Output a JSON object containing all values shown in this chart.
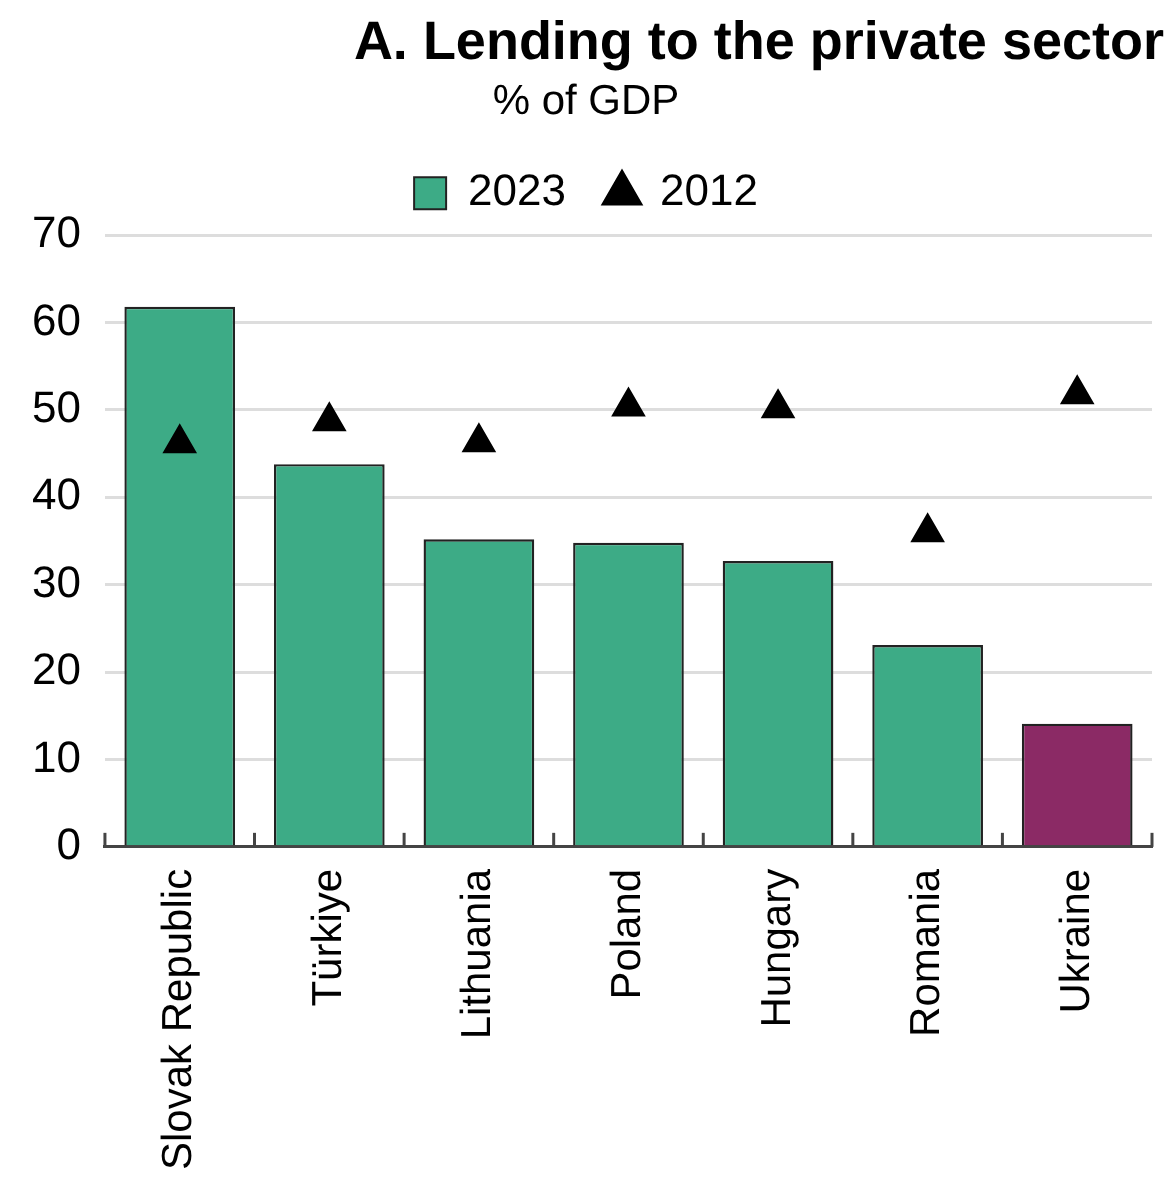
{
  "chart_data": {
    "type": "bar",
    "title": "A. Lending to the private sector",
    "subtitle": "% of GDP",
    "categories": [
      "Slovak Republic",
      "Türkiye",
      "Lithuania",
      "Poland",
      "Hungary",
      "Romania",
      "Ukraine"
    ],
    "series": [
      {
        "name": "2023",
        "color": "#3dab86",
        "colors": [
          "#3dab86",
          "#3dab86",
          "#3dab86",
          "#3dab86",
          "#3dab86",
          "#3dab86",
          "#8b2a65"
        ],
        "values": [
          61.8,
          43.8,
          35.2,
          34.8,
          32.7,
          23.1,
          14.1
        ]
      },
      {
        "name": "2012",
        "type": "scatter",
        "color": "#000000",
        "marker": "triangle",
        "x": [
          "Slovak Republic",
          "Türkiye",
          "Lithuania",
          "Poland",
          "Hungary",
          "Romania",
          "Ukraine"
        ],
        "values": [
          46.2,
          48.7,
          46.3,
          50.4,
          50.2,
          36.0,
          51.8
        ]
      }
    ],
    "ylim": [
      0,
      70
    ],
    "yticks": [
      0,
      10,
      20,
      30,
      40,
      50,
      60,
      70
    ],
    "grid": "y",
    "legend": "top"
  }
}
